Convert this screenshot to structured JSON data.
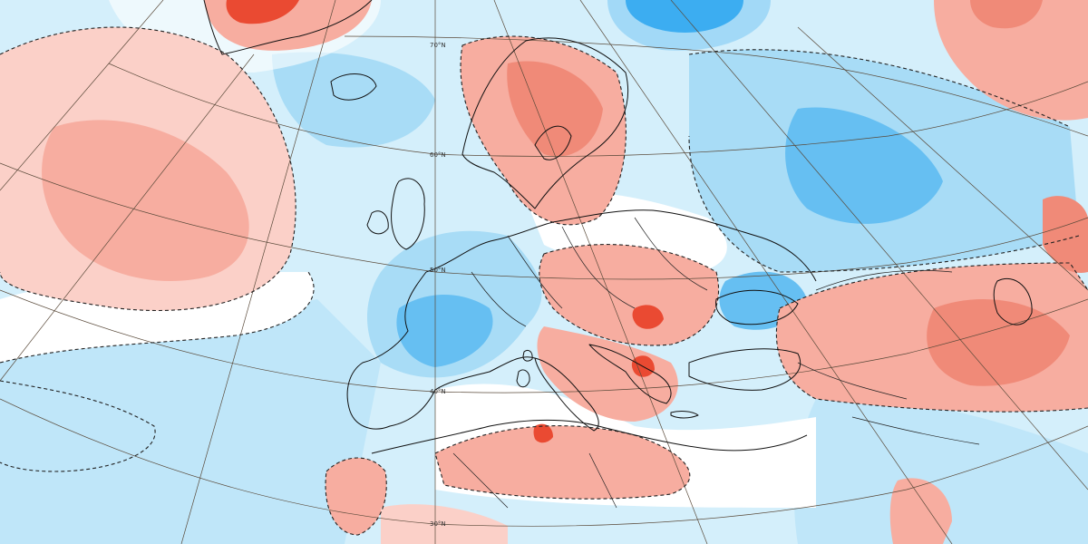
{
  "map": {
    "projection": "conic",
    "colors": {
      "neg_strong": "#1a9ff0",
      "neg_medium": "#66bff2",
      "neg_weak": "#a8dcf6",
      "neg_faint": "#d4effb",
      "neutral": "#ffffff",
      "pos_faint": "#fbd0c8",
      "pos_weak": "#f7ada0",
      "pos_medium": "#f08a78",
      "pos_strong": "#ea4a32"
    },
    "latitude_labels": [
      "70°N",
      "60°N",
      "50°N",
      "40°N",
      "30°N"
    ]
  }
}
